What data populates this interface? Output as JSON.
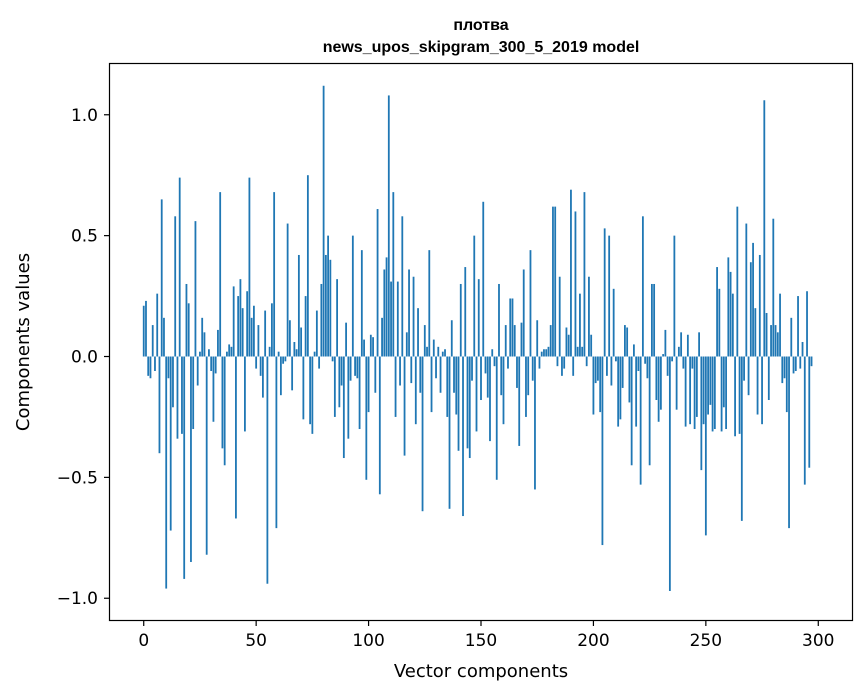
{
  "chart_data": {
    "type": "bar",
    "title": "плотва",
    "subtitle": "news_upos_skipgram_300_5_2019 model",
    "xlabel": "Vector components",
    "ylabel": "Components values",
    "xlim": [
      -15,
      315
    ],
    "ylim": [
      -1.09,
      1.21
    ],
    "xticks": [
      0,
      50,
      100,
      150,
      200,
      250,
      300
    ],
    "xtick_labels": [
      "0",
      "50",
      "100",
      "150",
      "200",
      "250",
      "300"
    ],
    "yticks": [
      -1.0,
      -0.5,
      0.0,
      0.5,
      1.0
    ],
    "ytick_labels": [
      "−1.0",
      "−0.5",
      "0.0",
      "0.5",
      "1.0"
    ],
    "bar_color": "#1f77b4",
    "grid": false,
    "values": [
      0.21,
      0.23,
      -0.08,
      -0.09,
      0.13,
      -0.06,
      0.26,
      -0.4,
      0.65,
      0.16,
      -0.96,
      -0.09,
      -0.72,
      -0.21,
      0.58,
      -0.34,
      0.74,
      -0.32,
      -0.92,
      0.3,
      0.22,
      -0.85,
      -0.3,
      0.56,
      -0.12,
      0.02,
      0.16,
      0.1,
      -0.82,
      0.03,
      -0.06,
      -0.27,
      -0.07,
      0.11,
      0.68,
      -0.38,
      -0.45,
      0.02,
      0.05,
      0.04,
      0.29,
      -0.67,
      0.25,
      0.32,
      0.2,
      -0.31,
      0.27,
      0.74,
      0.16,
      0.21,
      -0.05,
      0.13,
      -0.08,
      -0.17,
      0.19,
      -0.94,
      0.04,
      0.22,
      0.68,
      -0.71,
      0.02,
      -0.16,
      -0.03,
      -0.02,
      0.55,
      0.15,
      -0.14,
      0.06,
      0.03,
      0.42,
      0.12,
      -0.26,
      0.25,
      0.75,
      -0.28,
      -0.32,
      0.02,
      0.19,
      -0.05,
      0.3,
      1.12,
      0.42,
      0.5,
      0.4,
      -0.02,
      -0.25,
      0.32,
      -0.21,
      -0.12,
      -0.42,
      0.14,
      -0.34,
      -0.1,
      0.5,
      -0.08,
      -0.09,
      -0.3,
      0.44,
      0.07,
      -0.51,
      -0.23,
      0.09,
      0.08,
      -0.15,
      0.61,
      -0.57,
      0.16,
      0.36,
      0.41,
      1.08,
      0.31,
      0.68,
      -0.25,
      0.31,
      -0.12,
      0.58,
      -0.41,
      0.1,
      0.36,
      -0.11,
      0.33,
      -0.28,
      0.2,
      -0.15,
      -0.64,
      0.13,
      0.04,
      0.44,
      -0.23,
      0.07,
      -0.09,
      0.04,
      -0.15,
      0.02,
      0.03,
      -0.25,
      -0.63,
      0.15,
      -0.15,
      -0.24,
      -0.39,
      0.3,
      -0.66,
      0.37,
      -0.38,
      -0.42,
      -0.1,
      0.5,
      -0.31,
      0.32,
      -0.18,
      0.64,
      -0.07,
      -0.17,
      -0.35,
      0.03,
      -0.04,
      -0.51,
      0.3,
      -0.16,
      -0.28,
      0.13,
      -0.05,
      0.24,
      0.24,
      0.13,
      -0.13,
      -0.37,
      0.14,
      0.36,
      -0.25,
      -0.16,
      0.44,
      -0.1,
      -0.55,
      0.15,
      -0.05,
      0.02,
      0.03,
      0.03,
      0.04,
      0.13,
      0.62,
      0.62,
      -0.04,
      0.33,
      -0.08,
      -0.05,
      0.12,
      0.09,
      0.69,
      -0.08,
      0.6,
      0.04,
      0.26,
      0.04,
      0.68,
      -0.04,
      0.33,
      0.09,
      -0.24,
      -0.11,
      -0.1,
      -0.23,
      -0.78,
      0.53,
      -0.08,
      0.5,
      -0.12,
      0.28,
      -0.02,
      -0.29,
      -0.26,
      -0.13,
      0.13,
      0.12,
      -0.19,
      -0.45,
      0.05,
      -0.29,
      -0.06,
      -0.53,
      0.58,
      -0.03,
      -0.09,
      -0.45,
      0.3,
      0.3,
      -0.18,
      -0.27,
      -0.22,
      0.01,
      0.11,
      -0.08,
      -0.97,
      -0.02,
      0.5,
      -0.22,
      0.04,
      0.1,
      -0.05,
      -0.29,
      0.09,
      -0.28,
      -0.05,
      -0.3,
      -0.25,
      0.1,
      -0.47,
      -0.28,
      -0.74,
      -0.24,
      -0.2,
      -0.31,
      -0.3,
      0.37,
      0.28,
      -0.31,
      -0.21,
      -0.3,
      0.41,
      0.35,
      0.26,
      -0.33,
      0.62,
      -0.32,
      -0.68,
      -0.1,
      0.55,
      -0.16,
      0.39,
      0.47,
      0.2,
      -0.24,
      0.42,
      -0.28,
      1.06,
      0.18,
      -0.18,
      0.13,
      0.57,
      0.13,
      0.1,
      0.26,
      -0.11,
      -0.09,
      -0.23,
      -0.71,
      0.16,
      -0.07,
      -0.06,
      0.25,
      -0.05,
      0.06,
      -0.53,
      0.27,
      -0.46,
      -0.04
    ]
  }
}
